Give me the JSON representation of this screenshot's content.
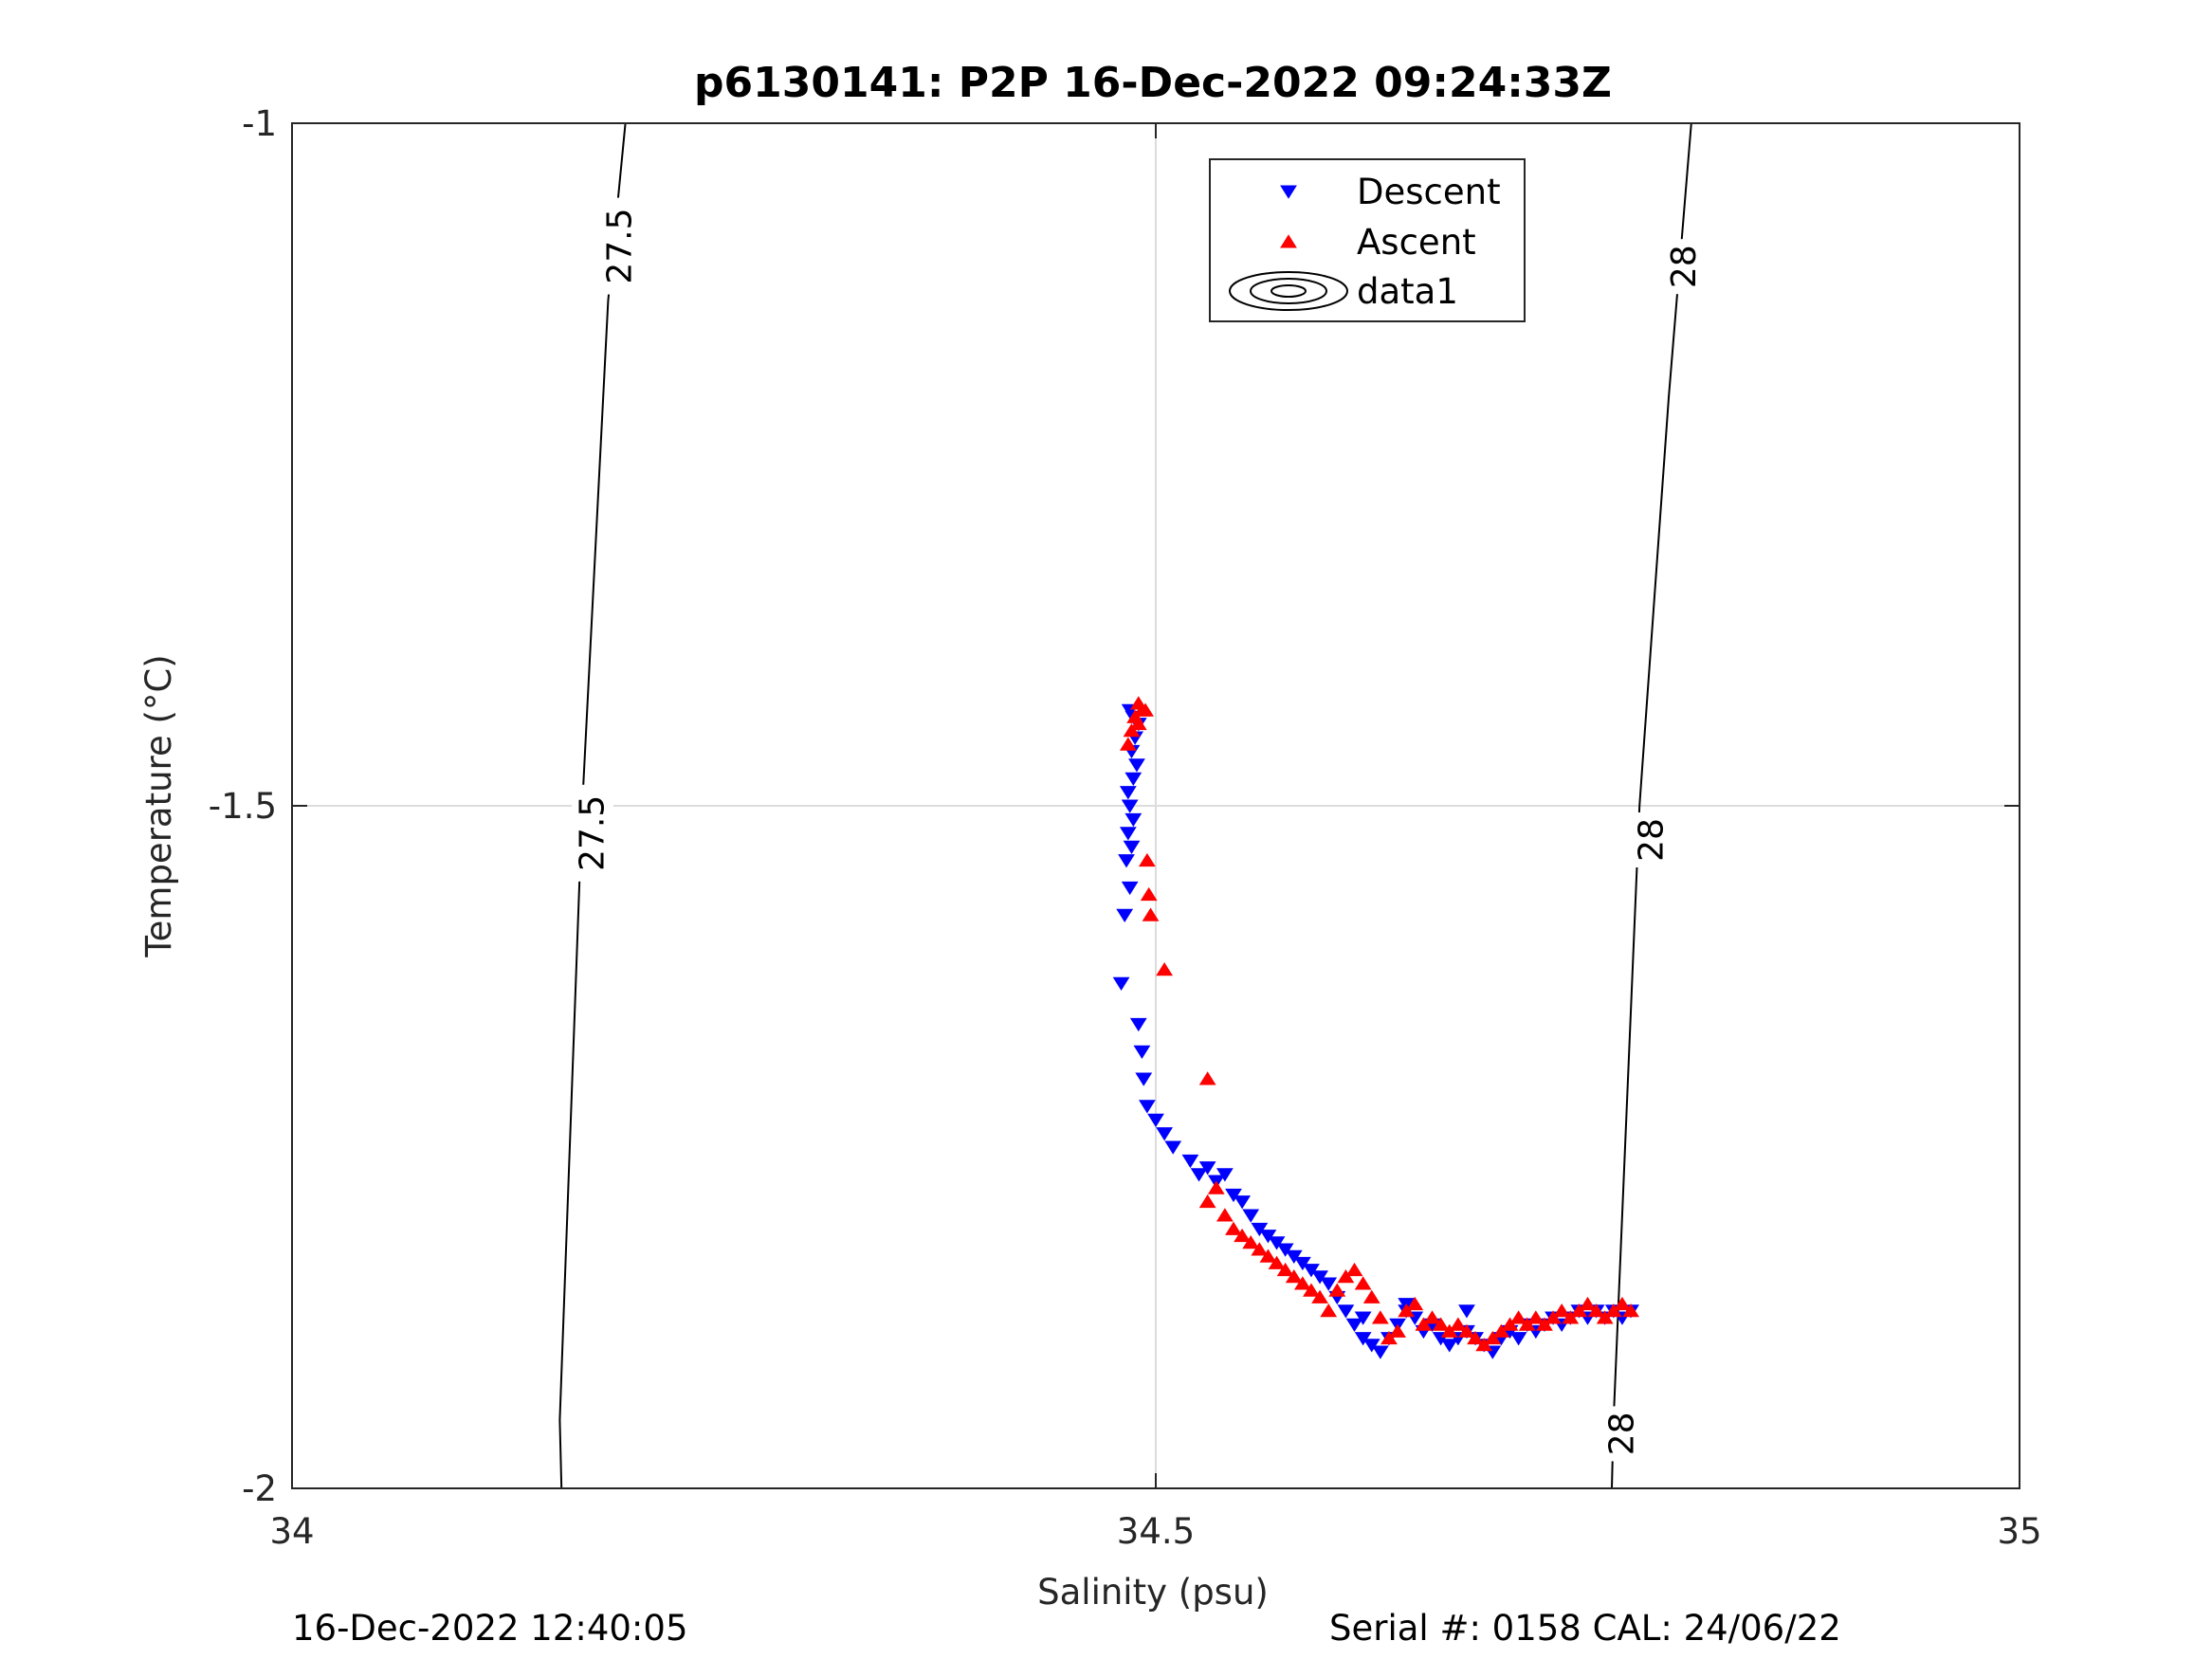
{
  "footer": {
    "timestamp": "16-Dec-2022 12:40:05",
    "serial_cal": "Serial #: 0158  CAL: 24/06/22"
  },
  "colors": {
    "descent": "#0000ff",
    "ascent": "#ff0000",
    "contour": "#000000",
    "grid": "#dcdcdc",
    "axis": "#262626"
  },
  "chart_data": {
    "type": "scatter",
    "title": "p6130141: P2P 16-Dec-2022 09:24:33Z",
    "xlabel": "Salinity (psu)",
    "ylabel": "Temperature (°C)",
    "xlim": [
      34,
      35
    ],
    "ylim": [
      -2,
      -1
    ],
    "xticks": [
      34,
      34.5,
      35
    ],
    "xtick_labels": [
      "34",
      "34.5",
      "35"
    ],
    "yticks": [
      -2,
      -1.5,
      -1
    ],
    "ytick_labels": [
      "-2",
      "-1.5",
      "-1"
    ],
    "grid": true,
    "legend": {
      "position": "top-center",
      "entries": [
        "Descent",
        "Ascent",
        "data1"
      ]
    },
    "contours": [
      {
        "level": "27.5",
        "points": [
          [
            34.193,
            -1.0
          ],
          [
            34.183,
            -1.13
          ],
          [
            34.168,
            -1.5
          ],
          [
            34.155,
            -1.95
          ],
          [
            34.156,
            -2.0
          ]
        ]
      },
      {
        "level": "28",
        "points": [
          [
            34.81,
            -1.0
          ],
          [
            34.797,
            -1.2
          ],
          [
            34.78,
            -1.5
          ],
          [
            34.765,
            -1.95
          ],
          [
            34.764,
            -2.0
          ]
        ]
      }
    ],
    "contour_labels": [
      {
        "text": "27.5",
        "x": 34.19,
        "y": -1.09
      },
      {
        "text": "27.5",
        "x": 34.174,
        "y": -1.52
      },
      {
        "text": "28",
        "x": 34.806,
        "y": -1.105
      },
      {
        "text": "28",
        "x": 34.787,
        "y": -1.525
      },
      {
        "text": "28",
        "x": 34.77,
        "y": -1.96
      }
    ],
    "series": [
      {
        "name": "Descent",
        "marker": "triangle-down",
        "points": [
          [
            34.485,
            -1.43
          ],
          [
            34.487,
            -1.435
          ],
          [
            34.49,
            -1.44
          ],
          [
            34.488,
            -1.45
          ],
          [
            34.486,
            -1.46
          ],
          [
            34.489,
            -1.47
          ],
          [
            34.487,
            -1.48
          ],
          [
            34.484,
            -1.49
          ],
          [
            34.485,
            -1.5
          ],
          [
            34.487,
            -1.51
          ],
          [
            34.484,
            -1.52
          ],
          [
            34.486,
            -1.53
          ],
          [
            34.483,
            -1.54
          ],
          [
            34.485,
            -1.56
          ],
          [
            34.482,
            -1.58
          ],
          [
            34.48,
            -1.63
          ],
          [
            34.49,
            -1.66
          ],
          [
            34.492,
            -1.68
          ],
          [
            34.493,
            -1.7
          ],
          [
            34.495,
            -1.72
          ],
          [
            34.5,
            -1.73
          ],
          [
            34.505,
            -1.74
          ],
          [
            34.51,
            -1.75
          ],
          [
            34.52,
            -1.76
          ],
          [
            34.525,
            -1.77
          ],
          [
            34.53,
            -1.765
          ],
          [
            34.535,
            -1.775
          ],
          [
            34.54,
            -1.77
          ],
          [
            34.545,
            -1.785
          ],
          [
            34.55,
            -1.79
          ],
          [
            34.555,
            -1.8
          ],
          [
            34.56,
            -1.81
          ],
          [
            34.565,
            -1.815
          ],
          [
            34.57,
            -1.82
          ],
          [
            34.575,
            -1.825
          ],
          [
            34.58,
            -1.83
          ],
          [
            34.585,
            -1.835
          ],
          [
            34.59,
            -1.84
          ],
          [
            34.595,
            -1.845
          ],
          [
            34.6,
            -1.85
          ],
          [
            34.605,
            -1.86
          ],
          [
            34.61,
            -1.87
          ],
          [
            34.615,
            -1.88
          ],
          [
            34.62,
            -1.89
          ],
          [
            34.625,
            -1.895
          ],
          [
            34.63,
            -1.9
          ],
          [
            34.635,
            -1.89
          ],
          [
            34.64,
            -1.88
          ],
          [
            34.645,
            -1.87
          ],
          [
            34.65,
            -1.875
          ],
          [
            34.655,
            -1.885
          ],
          [
            34.66,
            -1.88
          ],
          [
            34.665,
            -1.89
          ],
          [
            34.67,
            -1.895
          ],
          [
            34.675,
            -1.89
          ],
          [
            34.68,
            -1.885
          ],
          [
            34.685,
            -1.89
          ],
          [
            34.69,
            -1.895
          ],
          [
            34.695,
            -1.9
          ],
          [
            34.7,
            -1.89
          ],
          [
            34.705,
            -1.885
          ],
          [
            34.71,
            -1.89
          ],
          [
            34.715,
            -1.88
          ],
          [
            34.72,
            -1.885
          ],
          [
            34.725,
            -1.88
          ],
          [
            34.73,
            -1.875
          ],
          [
            34.735,
            -1.88
          ],
          [
            34.74,
            -1.875
          ],
          [
            34.745,
            -1.87
          ],
          [
            34.75,
            -1.875
          ],
          [
            34.755,
            -1.87
          ],
          [
            34.76,
            -1.875
          ],
          [
            34.765,
            -1.87
          ],
          [
            34.77,
            -1.875
          ],
          [
            34.775,
            -1.87
          ],
          [
            34.68,
            -1.87
          ],
          [
            34.645,
            -1.865
          ],
          [
            34.62,
            -1.875
          ]
        ]
      },
      {
        "name": "Ascent",
        "marker": "triangle-up",
        "points": [
          [
            34.49,
            -1.425
          ],
          [
            34.492,
            -1.43
          ],
          [
            34.488,
            -1.435
          ],
          [
            34.486,
            -1.445
          ],
          [
            34.49,
            -1.44
          ],
          [
            34.494,
            -1.43
          ],
          [
            34.484,
            -1.455
          ],
          [
            34.495,
            -1.54
          ],
          [
            34.496,
            -1.565
          ],
          [
            34.497,
            -1.58
          ],
          [
            34.505,
            -1.62
          ],
          [
            34.53,
            -1.7
          ],
          [
            34.53,
            -1.79
          ],
          [
            34.535,
            -1.78
          ],
          [
            34.54,
            -1.8
          ],
          [
            34.545,
            -1.81
          ],
          [
            34.55,
            -1.815
          ],
          [
            34.555,
            -1.82
          ],
          [
            34.56,
            -1.825
          ],
          [
            34.565,
            -1.83
          ],
          [
            34.57,
            -1.835
          ],
          [
            34.575,
            -1.84
          ],
          [
            34.58,
            -1.845
          ],
          [
            34.585,
            -1.85
          ],
          [
            34.59,
            -1.855
          ],
          [
            34.595,
            -1.86
          ],
          [
            34.6,
            -1.87
          ],
          [
            34.605,
            -1.855
          ],
          [
            34.61,
            -1.845
          ],
          [
            34.615,
            -1.84
          ],
          [
            34.62,
            -1.85
          ],
          [
            34.625,
            -1.86
          ],
          [
            34.63,
            -1.875
          ],
          [
            34.635,
            -1.89
          ],
          [
            34.64,
            -1.885
          ],
          [
            34.645,
            -1.87
          ],
          [
            34.65,
            -1.865
          ],
          [
            34.655,
            -1.88
          ],
          [
            34.66,
            -1.875
          ],
          [
            34.665,
            -1.88
          ],
          [
            34.67,
            -1.885
          ],
          [
            34.675,
            -1.88
          ],
          [
            34.68,
            -1.885
          ],
          [
            34.685,
            -1.89
          ],
          [
            34.69,
            -1.895
          ],
          [
            34.695,
            -1.89
          ],
          [
            34.7,
            -1.885
          ],
          [
            34.705,
            -1.88
          ],
          [
            34.71,
            -1.875
          ],
          [
            34.715,
            -1.88
          ],
          [
            34.72,
            -1.875
          ],
          [
            34.725,
            -1.88
          ],
          [
            34.73,
            -1.875
          ],
          [
            34.735,
            -1.87
          ],
          [
            34.74,
            -1.875
          ],
          [
            34.745,
            -1.87
          ],
          [
            34.75,
            -1.865
          ],
          [
            34.755,
            -1.87
          ],
          [
            34.76,
            -1.875
          ],
          [
            34.765,
            -1.87
          ],
          [
            34.77,
            -1.865
          ],
          [
            34.775,
            -1.87
          ]
        ]
      }
    ]
  }
}
